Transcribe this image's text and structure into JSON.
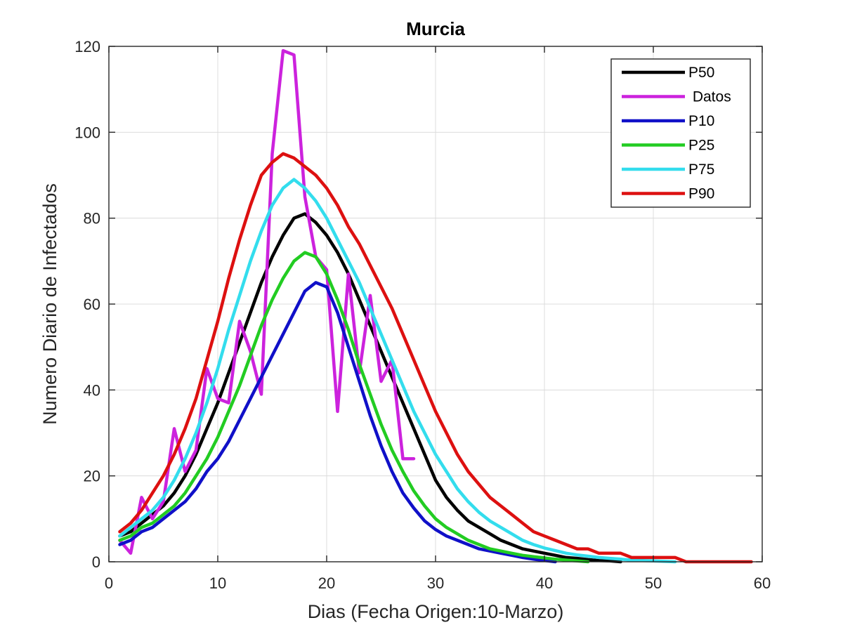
{
  "chart_data": {
    "type": "line",
    "title": "Murcia",
    "xlabel": "Dias (Fecha Origen:10-Marzo)",
    "ylabel": "Numero Diario de Infectados",
    "xlim": [
      0,
      60
    ],
    "ylim": [
      0,
      120
    ],
    "xticks": [
      0,
      10,
      20,
      30,
      40,
      50,
      60
    ],
    "yticks": [
      0,
      20,
      40,
      60,
      80,
      100,
      120
    ],
    "grid": true,
    "legend_position": "top-right",
    "series": [
      {
        "name": "P50",
        "color": "#000000",
        "x": [
          1,
          2,
          3,
          4,
          5,
          6,
          7,
          8,
          9,
          10,
          11,
          12,
          13,
          14,
          15,
          16,
          17,
          18,
          19,
          20,
          21,
          22,
          23,
          24,
          25,
          26,
          27,
          28,
          29,
          30,
          31,
          32,
          33,
          34,
          35,
          36,
          37,
          38,
          39,
          40,
          41,
          42,
          43,
          44,
          45,
          46,
          47
        ],
        "values": [
          6,
          7,
          9,
          11,
          13,
          16,
          20,
          25,
          31,
          37,
          44,
          51,
          58,
          65,
          71,
          76,
          80,
          81,
          79,
          76,
          72,
          67,
          61,
          55,
          49,
          43,
          37,
          31,
          25,
          19,
          15,
          12,
          9.5,
          8,
          6.5,
          5,
          4,
          3,
          2.5,
          2,
          1.5,
          1,
          0.8,
          0.5,
          0.3,
          0.2,
          0
        ]
      },
      {
        "name": " Datos",
        "color": "#cc22dd",
        "x": [
          1,
          2,
          3,
          4,
          5,
          6,
          7,
          8,
          9,
          10,
          11,
          12,
          13,
          14,
          15,
          16,
          17,
          18,
          19,
          20,
          21,
          22,
          23,
          24,
          25,
          26,
          27,
          28
        ],
        "values": [
          5,
          2,
          15,
          10,
          14,
          31,
          21,
          26,
          45,
          38,
          37,
          56,
          49,
          39,
          95,
          119,
          118,
          85,
          71,
          68,
          35,
          67,
          44,
          62,
          42,
          47,
          24,
          24
        ]
      },
      {
        "name": "P10",
        "color": "#1010c8",
        "x": [
          1,
          2,
          3,
          4,
          5,
          6,
          7,
          8,
          9,
          10,
          11,
          12,
          13,
          14,
          15,
          16,
          17,
          18,
          19,
          20,
          21,
          22,
          23,
          24,
          25,
          26,
          27,
          28,
          29,
          30,
          31,
          32,
          33,
          34,
          35,
          36,
          37,
          38,
          39,
          40,
          41
        ],
        "values": [
          4,
          5,
          7,
          8,
          10,
          12,
          14,
          17,
          21,
          24,
          28,
          33,
          38,
          43,
          48,
          53,
          58,
          63,
          65,
          64,
          58,
          50,
          42,
          34,
          27,
          21,
          16,
          12.5,
          9.5,
          7.5,
          6,
          5,
          4,
          3,
          2.5,
          2,
          1.5,
          1,
          0.6,
          0.3,
          0
        ]
      },
      {
        "name": "P25",
        "color": "#22cc22",
        "x": [
          1,
          2,
          3,
          4,
          5,
          6,
          7,
          8,
          9,
          10,
          11,
          12,
          13,
          14,
          15,
          16,
          17,
          18,
          19,
          20,
          21,
          22,
          23,
          24,
          25,
          26,
          27,
          28,
          29,
          30,
          31,
          32,
          33,
          34,
          35,
          36,
          37,
          38,
          39,
          40,
          41,
          42,
          43,
          44
        ],
        "values": [
          5,
          6,
          8,
          9,
          11,
          13,
          16,
          20,
          24,
          29,
          35,
          41,
          48,
          55,
          61,
          66,
          70,
          72,
          71,
          67,
          61,
          54,
          46,
          39,
          32,
          26,
          21,
          16.5,
          13,
          10,
          8,
          6.5,
          5,
          4,
          3,
          2.5,
          2,
          1.5,
          1.2,
          0.9,
          0.6,
          0.4,
          0.2,
          0
        ]
      },
      {
        "name": "P75",
        "color": "#33dded",
        "x": [
          1,
          2,
          3,
          4,
          5,
          6,
          7,
          8,
          9,
          10,
          11,
          12,
          13,
          14,
          15,
          16,
          17,
          18,
          19,
          20,
          21,
          22,
          23,
          24,
          25,
          26,
          27,
          28,
          29,
          30,
          31,
          32,
          33,
          34,
          35,
          36,
          37,
          38,
          39,
          40,
          41,
          42,
          43,
          44,
          45,
          46,
          47,
          48,
          49,
          50,
          51,
          52
        ],
        "values": [
          6,
          8,
          10,
          12,
          15,
          19,
          24,
          30,
          37,
          45,
          54,
          62,
          70,
          77,
          83,
          87,
          89,
          87,
          84,
          80,
          75,
          70,
          65,
          59,
          53,
          47,
          41,
          35,
          30,
          25,
          21,
          17,
          14,
          11.5,
          9.5,
          8,
          6.5,
          5,
          4,
          3.2,
          2.6,
          2,
          1.6,
          1.3,
          1,
          0.8,
          0.6,
          0.4,
          0.3,
          0.2,
          0.1,
          0
        ]
      },
      {
        "name": "P90",
        "color": "#dd1010",
        "x": [
          1,
          2,
          3,
          4,
          5,
          6,
          7,
          8,
          9,
          10,
          11,
          12,
          13,
          14,
          15,
          16,
          17,
          18,
          19,
          20,
          21,
          22,
          23,
          24,
          25,
          26,
          27,
          28,
          29,
          30,
          31,
          32,
          33,
          34,
          35,
          36,
          37,
          38,
          39,
          40,
          41,
          42,
          43,
          44,
          45,
          46,
          47,
          48,
          49,
          50,
          51,
          52,
          53,
          54,
          55,
          56,
          57,
          58,
          59
        ],
        "values": [
          7,
          9,
          12,
          16,
          20,
          25,
          31,
          38,
          47,
          56,
          66,
          75,
          83,
          90,
          93,
          95,
          94,
          92,
          90,
          87,
          83,
          78,
          74,
          69,
          64,
          59,
          53,
          47,
          41,
          35,
          30,
          25,
          21,
          18,
          15,
          13,
          11,
          9,
          7,
          6,
          5,
          4,
          3,
          3,
          2,
          2,
          2,
          1,
          1,
          1,
          1,
          1,
          0,
          0,
          0,
          0,
          0,
          0,
          0
        ]
      }
    ]
  }
}
